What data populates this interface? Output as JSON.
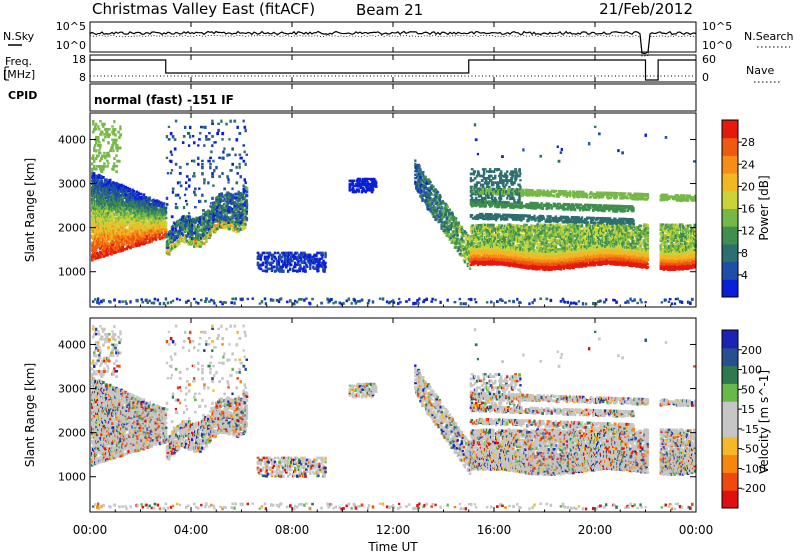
{
  "header": {
    "title": "Christmas Valley East (fitACF)",
    "beam": "Beam 21",
    "date": "21/Feb/2012"
  },
  "strips": {
    "nsky": {
      "label": "N.Sky",
      "ticks": [
        "10^5",
        "10^0"
      ],
      "right_label": "N.Search",
      "right_ticks": [
        "10^5",
        "10^0"
      ]
    },
    "freq": {
      "label_line1": "Freq.",
      "label_line2": "[MHz]",
      "ticks": [
        "18",
        "8"
      ],
      "right_label": "Nave",
      "right_ticks": [
        "60",
        "0"
      ]
    },
    "cpid": {
      "label": "CPID",
      "value": "normal (fast) -151 IF"
    }
  },
  "colors": {
    "power": [
      "#0b1fd6",
      "#1e4ea8",
      "#2d6e6e",
      "#3f8f4f",
      "#76b847",
      "#c9d43a",
      "#f2b824",
      "#f58d17",
      "#ef5a12",
      "#e61a0c"
    ],
    "velocity": [
      "#e01010",
      "#ee4a10",
      "#f5870f",
      "#f5b82a",
      "#c6c6c6",
      "#c6c6c6",
      "#67b94a",
      "#2e7a4e",
      "#2a4f8f",
      "#1a23b4"
    ]
  },
  "chart_data": [
    {
      "type": "heatmap",
      "quantity": "power",
      "ylabel": "Slant Range [km]",
      "yticks": [
        1000,
        2000,
        3000,
        4000
      ],
      "ylim": [
        200,
        4600
      ],
      "xlim": [
        0,
        24
      ],
      "colorbar": {
        "label": "Power [dB]",
        "ticks": [
          "4",
          "8",
          "12",
          "16",
          "20",
          "24",
          "28"
        ],
        "range": [
          0,
          30
        ]
      }
    },
    {
      "type": "heatmap",
      "quantity": "velocity",
      "ylabel": "Slant Range [km]",
      "yticks": [
        1000,
        2000,
        3000,
        4000
      ],
      "ylim": [
        200,
        4600
      ],
      "xlim": [
        0,
        24
      ],
      "colorbar": {
        "label": "Velocity [m s^-1]",
        "ticks": [
          "-200",
          "-100",
          "-50",
          "-15",
          "15",
          "50",
          "100",
          "200"
        ]
      }
    }
  ],
  "xaxis": {
    "label": "Time UT",
    "ticks": [
      "00:00",
      "04:00",
      "08:00",
      "12:00",
      "16:00",
      "20:00",
      "00:00"
    ],
    "tick_hours": [
      0,
      4,
      8,
      12,
      16,
      20,
      24
    ]
  }
}
